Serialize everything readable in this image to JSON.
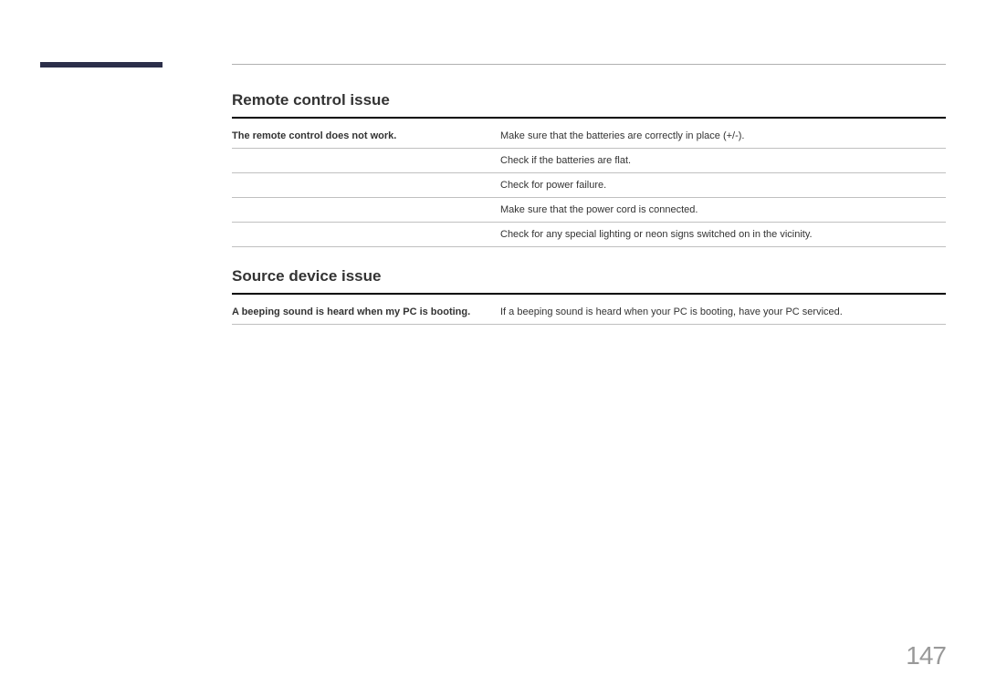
{
  "page": {
    "number": "147"
  },
  "sections": [
    {
      "title": "Remote control issue",
      "rows": [
        {
          "symptom": "The remote control does not work.",
          "solution": "Make sure that the batteries are correctly in place (+/-)."
        },
        {
          "symptom": "",
          "solution": "Check if the batteries are flat."
        },
        {
          "symptom": "",
          "solution": "Check for power failure."
        },
        {
          "symptom": "",
          "solution": "Make sure that the power cord is connected."
        },
        {
          "symptom": "",
          "solution": "Check for any special lighting or neon signs switched on in the vicinity."
        }
      ]
    },
    {
      "title": "Source device issue",
      "rows": [
        {
          "symptom": "A beeping sound is heard when my PC is booting.",
          "solution": "If a beeping sound is heard when your PC is booting, have your PC serviced."
        }
      ]
    }
  ]
}
